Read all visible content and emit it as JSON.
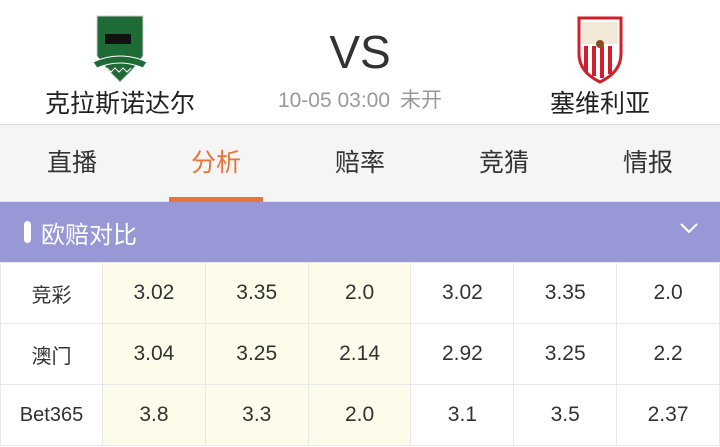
{
  "match": {
    "home": "克拉斯诺达尔",
    "away": "塞维利亚",
    "vs": "VS",
    "time": "10-05 03:00",
    "status": "未开",
    "home_colors": {
      "primary": "#1f6b36"
    },
    "away_colors": {
      "primary": "#d01f2b"
    }
  },
  "tabs": [
    {
      "label": "直播"
    },
    {
      "label": "分析",
      "active": true
    },
    {
      "label": "赔率"
    },
    {
      "label": "竞猜"
    },
    {
      "label": "情报"
    }
  ],
  "accent": "#e8743b",
  "section": {
    "title": "欧赔对比",
    "color": "#9898d6"
  },
  "odds": [
    {
      "company": "竞彩",
      "values": [
        "3.02",
        "3.35",
        "2.0",
        "3.02",
        "3.35",
        "2.0"
      ]
    },
    {
      "company": "澳门",
      "values": [
        "3.04",
        "3.25",
        "2.14",
        "2.92",
        "3.25",
        "2.2"
      ]
    },
    {
      "company": "Bet365",
      "values": [
        "3.8",
        "3.3",
        "2.0",
        "3.1",
        "3.5",
        "2.37"
      ]
    }
  ]
}
